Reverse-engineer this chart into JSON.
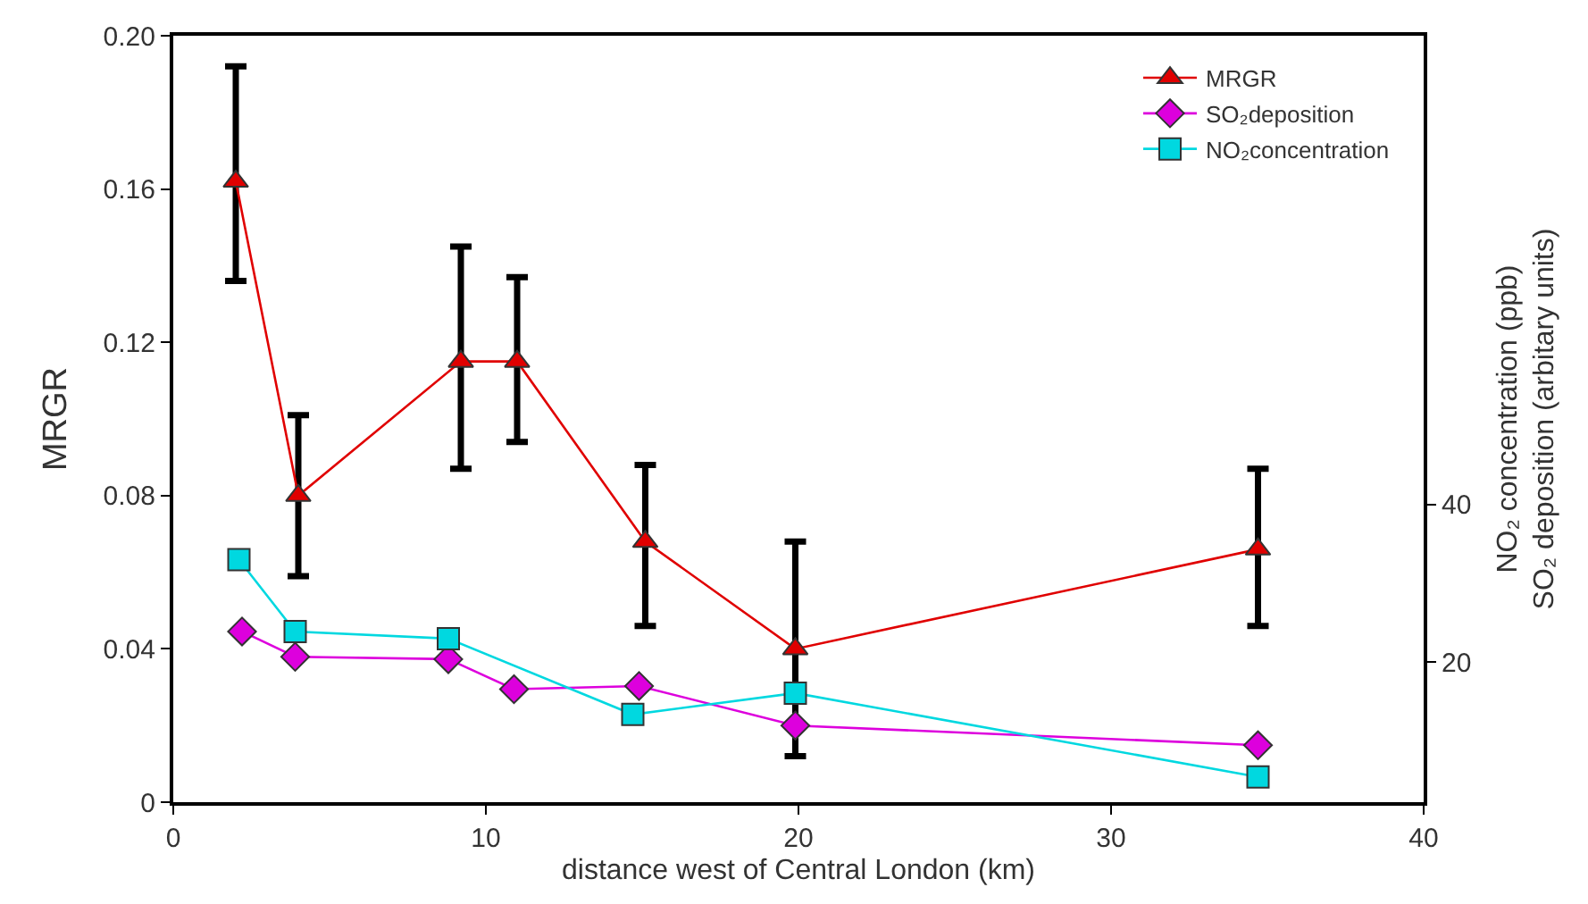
{
  "chart_data": {
    "type": "line",
    "xlabel": "distance west of Central London (km)",
    "ylabel": "MRGR",
    "y2label": "NO₂ concentration (ppb)\nSO₂ deposition (arbitary units)",
    "xlim": [
      0,
      40
    ],
    "xticks": [
      0,
      10,
      20,
      30,
      40
    ],
    "ylim": [
      0,
      0.2
    ],
    "yticks": [
      0,
      0.04,
      0.08,
      0.12,
      0.16,
      {
        "value": 0.2,
        "label": "0.20"
      }
    ],
    "y2lim": [
      2.3,
      99.3
    ],
    "y2ticks": [
      20,
      40
    ],
    "legend": "top right",
    "line_style": "solid",
    "series": [
      {
        "name": "MRGR",
        "color": "#e00000",
        "marker": "triangle",
        "x": [
          2,
          4,
          9.2,
          11,
          15.1,
          19.9,
          34.7
        ],
        "values": [
          0.162,
          0.08,
          0.115,
          0.115,
          0.068,
          0.04,
          0.066
        ],
        "errors": [
          [
            0.136,
            0.192
          ],
          [
            0.059,
            0.101
          ],
          [
            0.087,
            0.145
          ],
          [
            0.094,
            0.137
          ],
          [
            0.046,
            0.088
          ],
          [
            0.012,
            0.068
          ],
          [
            0.046,
            0.087
          ]
        ]
      },
      {
        "name": "SO₂deposition",
        "color": "#dd00dd",
        "marker": "diamond",
        "axis": "y2",
        "x": [
          2.2,
          3.9,
          8.8,
          10.9,
          14.9,
          19.9,
          34.7
        ],
        "values": [
          23.9,
          20.7,
          20.4,
          16.6,
          17,
          12,
          9.5
        ]
      },
      {
        "name": "NO₂concentration",
        "color": "#00d8e0",
        "marker": "square",
        "axis": "y2",
        "x": [
          2.1,
          3.9,
          8.8,
          14.7,
          19.9,
          34.7
        ],
        "values": [
          33,
          23.9,
          23,
          13.4,
          16.1,
          5.5
        ]
      }
    ]
  }
}
